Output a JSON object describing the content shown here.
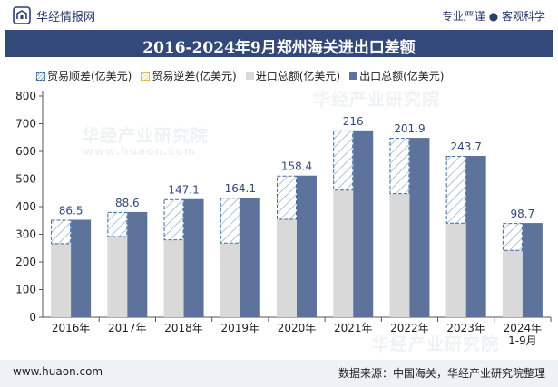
{
  "header": {
    "brand": "华经情报网",
    "tagline": "专业严谨 ● 客观科学"
  },
  "title": "2016-2024年9月郑州海关进出口差额",
  "legend": [
    {
      "label": "贸易顺差(亿美元)",
      "swatch": "hatch"
    },
    {
      "label": "贸易逆差(亿美元)",
      "swatch": "gold"
    },
    {
      "label": "进口总额(亿美元)",
      "swatch": "grey"
    },
    {
      "label": "出口总额(亿美元)",
      "swatch": "navy"
    }
  ],
  "colors": {
    "export": "#5d739b",
    "import": "#d9d9d9",
    "surplus_stroke": "#3a6e9f",
    "title_bg": "#33497a"
  },
  "chart_data": {
    "type": "bar",
    "categories": [
      "2016年",
      "2017年",
      "2018年",
      "2019年",
      "2020年",
      "2021年",
      "2022年",
      "2023年",
      "2024年\n1-9月"
    ],
    "series": [
      {
        "name": "进口总额(亿美元)",
        "values": [
          266,
          292,
          280,
          268,
          354,
          460,
          447,
          340,
          242
        ]
      },
      {
        "name": "出口总额(亿美元)",
        "values": [
          352.5,
          380.6,
          427.1,
          432.1,
          512.4,
          676,
          648.9,
          583.7,
          340.7
        ]
      },
      {
        "name": "贸易顺差(亿美元)",
        "values": [
          86.5,
          88.6,
          147.1,
          164.1,
          158.4,
          216,
          201.9,
          243.7,
          98.7
        ]
      }
    ],
    "ylim": [
      0,
      800
    ],
    "yticks": [
      0,
      100,
      200,
      300,
      400,
      500,
      600,
      700,
      800
    ]
  },
  "footer": {
    "url": "www.huaon.com",
    "source": "数据来源：中国海关，华经产业研究院整理"
  },
  "watermark": "华经产业研究院",
  "watermark_url": "www.huaon.com"
}
